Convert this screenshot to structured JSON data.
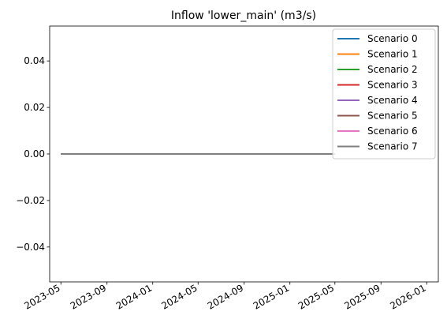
{
  "chart_data": {
    "type": "line",
    "title": "Inflow 'lower_main' (m3/s)",
    "x": [
      "2023-05",
      "2025-05"
    ],
    "series": [
      {
        "name": "Scenario 0",
        "color": "#1f77b4",
        "values": [
          0,
          0
        ]
      },
      {
        "name": "Scenario 1",
        "color": "#ff7f0e",
        "values": [
          0,
          0
        ]
      },
      {
        "name": "Scenario 2",
        "color": "#2ca02c",
        "values": [
          0,
          0
        ]
      },
      {
        "name": "Scenario 3",
        "color": "#d62728",
        "values": [
          0,
          0
        ]
      },
      {
        "name": "Scenario 4",
        "color": "#9467bd",
        "values": [
          0,
          0
        ]
      },
      {
        "name": "Scenario 5",
        "color": "#8c564b",
        "values": [
          0,
          0
        ]
      },
      {
        "name": "Scenario 6",
        "color": "#e377c2",
        "values": [
          0,
          0
        ]
      },
      {
        "name": "Scenario 7",
        "color": "#7f7f7f",
        "values": [
          0,
          0
        ]
      }
    ],
    "xlim": [
      "2023-04",
      "2026-02"
    ],
    "xticks": [
      "2023-05",
      "2023-09",
      "2024-01",
      "2024-05",
      "2024-09",
      "2025-01",
      "2025-05",
      "2025-09",
      "2026-01"
    ],
    "ylim": [
      -0.055,
      0.055
    ],
    "yticks": [
      {
        "value": -0.04,
        "label": "−0.04"
      },
      {
        "value": -0.02,
        "label": "−0.02"
      },
      {
        "value": 0,
        "label": "0.00"
      },
      {
        "value": 0.02,
        "label": "0.02"
      },
      {
        "value": 0.04,
        "label": "0.04"
      }
    ],
    "legend": "upper right",
    "grid": false
  }
}
